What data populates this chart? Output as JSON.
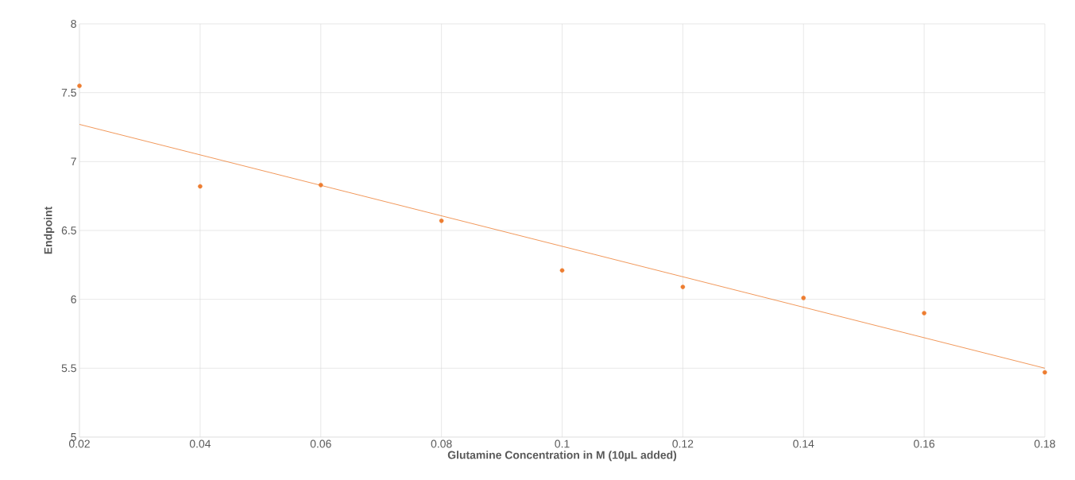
{
  "chart_data": {
    "type": "scatter",
    "xlabel": "Glutamine Concentration in M (10µL added)",
    "ylabel": "Endpoint",
    "x": [
      0.02,
      0.04,
      0.06,
      0.08,
      0.1,
      0.12,
      0.14,
      0.16,
      0.18
    ],
    "series": [
      {
        "color": "#ed7d31",
        "values": [
          7.55,
          6.82,
          6.83,
          6.57,
          6.21,
          6.09,
          6.01,
          5.9,
          5.47
        ],
        "marker": "circle"
      },
      {
        "type": "line",
        "color": "#ed7d31",
        "x": [
          0.02,
          0.18
        ],
        "values": [
          7.27,
          5.5
        ],
        "marker": "none"
      }
    ],
    "xlim": [
      0.02,
      0.18
    ],
    "ylim": [
      5,
      8
    ],
    "xticks": [
      0.02,
      0.04,
      0.06,
      0.08,
      0.1,
      0.12,
      0.14,
      0.16,
      0.18
    ],
    "yticks": [
      5,
      5.5,
      6,
      6.5,
      7,
      7.5,
      8
    ],
    "grid": true
  }
}
